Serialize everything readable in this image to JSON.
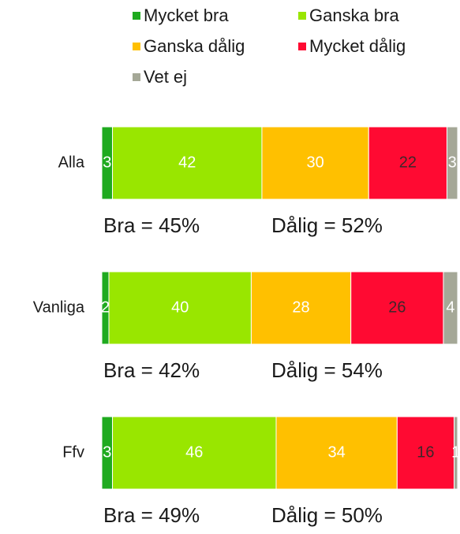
{
  "chart_data": {
    "type": "stacked_barh",
    "categories": [
      "Alla",
      "Vanliga",
      "Ffv"
    ],
    "series": [
      {
        "name": "Mycket bra",
        "color": "#1faa1f",
        "label_color": "#ffffff",
        "values": [
          3,
          2,
          3
        ]
      },
      {
        "name": "Ganska bra",
        "color": "#99e600",
        "label_color": "#ffffff",
        "values": [
          42,
          40,
          46
        ]
      },
      {
        "name": "Ganska dålig",
        "color": "#ffc000",
        "label_color": "#ffffff",
        "values": [
          30,
          28,
          34
        ]
      },
      {
        "name": "Mycket dålig",
        "color": "#ff0a32",
        "label_color": "#40262a",
        "values": [
          22,
          26,
          16
        ]
      },
      {
        "name": "Vet ej",
        "color": "#a5a897",
        "label_color": "#ffffff",
        "values": [
          3,
          4,
          1
        ]
      }
    ],
    "xlim": [
      0,
      100
    ],
    "annotations": [
      [
        "Bra = 45%",
        "Dålig = 52%"
      ],
      [
        "Bra = 42%",
        "Dålig = 54%"
      ],
      [
        "Bra = 49%",
        "Dålig = 50%"
      ]
    ]
  }
}
